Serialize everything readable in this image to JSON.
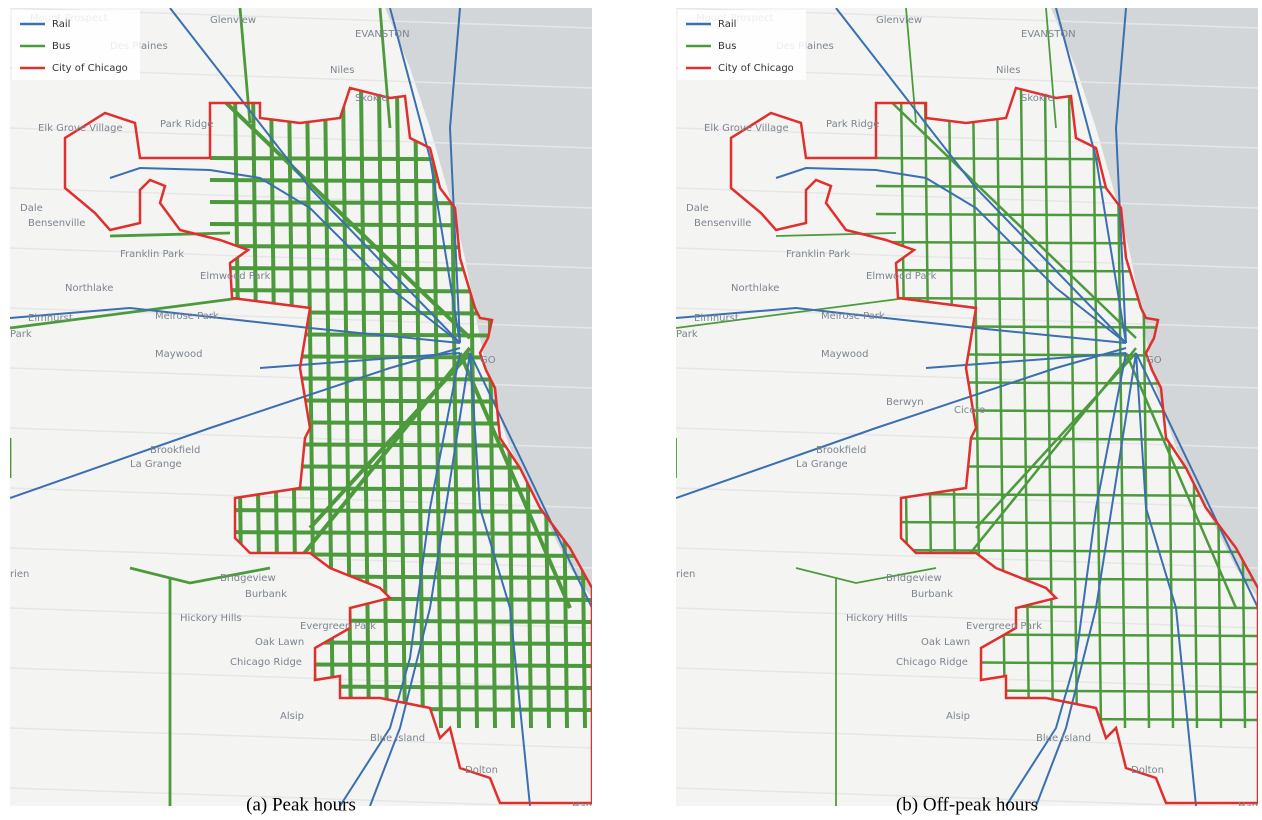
{
  "panels": [
    {
      "legend": [
        "Rail",
        "Bus",
        "City of Chicago"
      ],
      "caption": "(a) Peak hours",
      "places": [
        "Mount Prospect",
        "Glenview",
        "EVANSTON",
        "Des Plaines",
        "Niles",
        "Skokie",
        "Elk Grove Village",
        "Park Ridge",
        "Dale",
        "Bensenville",
        "Franklin Park",
        "Elmwood Park",
        "Northlake",
        "Melrose Park",
        "Elmhurst",
        "Park",
        "Maywood",
        "GO",
        "Brookfield",
        "La Grange",
        "rien",
        "Bridgeview",
        "Burbank",
        "Hickory Hills",
        "Oak Lawn",
        "Evergreen Park",
        "Chicago Ridge",
        "Alsip",
        "Blue Island",
        "Dolton",
        "Ham"
      ]
    },
    {
      "legend": [
        "Rail",
        "Bus",
        "City of Chicago"
      ],
      "caption": "(b) Off-peak hours",
      "places": [
        "Mount Prospect",
        "Glenview",
        "EVANSTON",
        "Des Plaines",
        "Niles",
        "Skokie",
        "Elk Grove Village",
        "Park Ridge",
        "Dale",
        "Bensenville",
        "Franklin Park",
        "Elmwood Park",
        "Northlake",
        "Melrose Park",
        "Elmhurst",
        "Park",
        "Maywood",
        "GO",
        "Berwyn",
        "Cicero",
        "Brookfield",
        "La Grange",
        "rien",
        "Bridgeview",
        "Burbank",
        "Hickory Hills",
        "Oak Lawn",
        "Evergreen Park",
        "Chicago Ridge",
        "Alsip",
        "Blue Island",
        "Dolton",
        "Ham"
      ]
    }
  ]
}
